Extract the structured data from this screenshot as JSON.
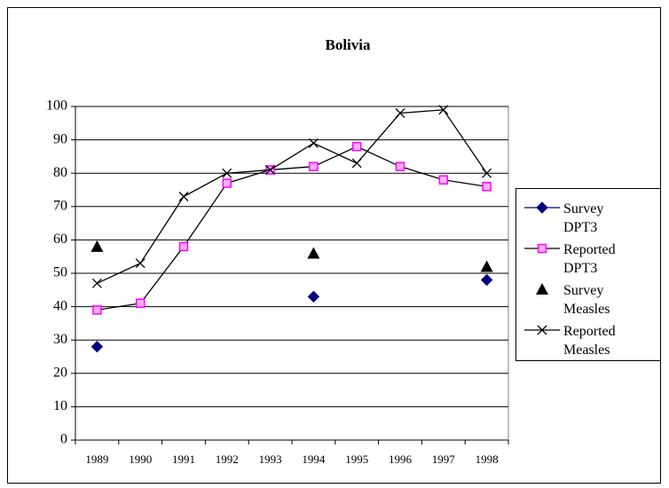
{
  "chart_data": {
    "type": "line",
    "title": "Bolivia",
    "categories": [
      "1989",
      "1990",
      "1991",
      "1992",
      "1993",
      "1994",
      "1995",
      "1996",
      "1997",
      "1998"
    ],
    "series": [
      {
        "name": "Survey DPT3",
        "color": "#000080",
        "marker": "diamond",
        "line": false,
        "values": [
          28,
          null,
          null,
          null,
          null,
          43,
          null,
          null,
          null,
          48
        ]
      },
      {
        "name": "Reported DPT3",
        "color": "#ff00ff",
        "marker": "square",
        "line": true,
        "values": [
          39,
          41,
          58,
          77,
          81,
          82,
          88,
          82,
          78,
          76
        ]
      },
      {
        "name": "Survey Measles",
        "color": "#000000",
        "marker": "triangle",
        "line": false,
        "values": [
          58,
          null,
          null,
          null,
          null,
          56,
          null,
          null,
          null,
          52
        ]
      },
      {
        "name": "Reported Measles",
        "color": "#000000",
        "marker": "x",
        "line": true,
        "values": [
          47,
          53,
          73,
          80,
          81,
          89,
          83,
          98,
          99,
          80
        ]
      }
    ],
    "ylim": [
      0,
      100
    ],
    "yticks": [
      0,
      10,
      20,
      30,
      40,
      50,
      60,
      70,
      80,
      90,
      100
    ],
    "grid": true,
    "legend": "right"
  }
}
